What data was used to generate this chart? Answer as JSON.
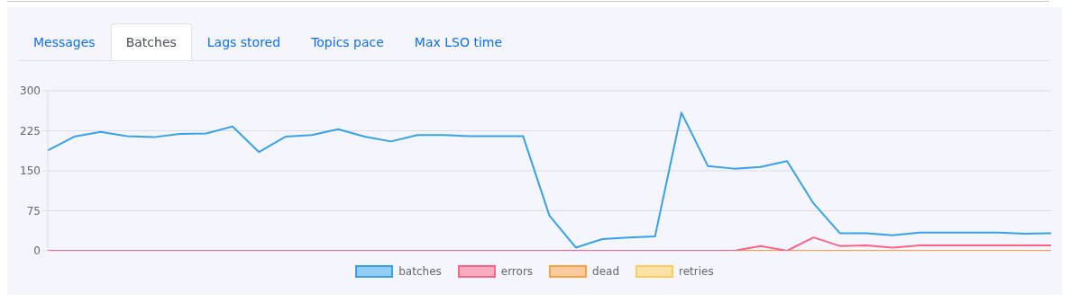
{
  "chart_data": {
    "type": "line",
    "annotations": [
      "Messages",
      "Batches",
      "Lags stored",
      "Topics pace",
      "Max LSO time"
    ],
    "categories": [
      null,
      null,
      null,
      null,
      null,
      null,
      null,
      null,
      null,
      null,
      null,
      null,
      null,
      null,
      null,
      null,
      null,
      null,
      null,
      null,
      null,
      null,
      null,
      null,
      null,
      null,
      null,
      null,
      null,
      null,
      null,
      null,
      null,
      null,
      null,
      null,
      null,
      null,
      null
    ],
    "series": [
      {
        "name": "batches",
        "color": "#36a2eb",
        "values": [
          188,
          214,
          223,
          215,
          213,
          219,
          220,
          233,
          185,
          214,
          217,
          228,
          214,
          205,
          217,
          217,
          215,
          215,
          215,
          66,
          6,
          22,
          25,
          27,
          259,
          159,
          154,
          157,
          168,
          89,
          33,
          33,
          29,
          34,
          34,
          34,
          34,
          32,
          33
        ]
      },
      {
        "name": "errors",
        "color": "#ff6384",
        "values": [
          0,
          0,
          0,
          0,
          0,
          0,
          0,
          0,
          0,
          0,
          0,
          0,
          0,
          0,
          0,
          0,
          0,
          0,
          0,
          0,
          0,
          0,
          0,
          0,
          0,
          0,
          0,
          9,
          0,
          25,
          9,
          10,
          6,
          10,
          10,
          10,
          10,
          10,
          10
        ]
      },
      {
        "name": "dead",
        "color": "#ff9f40",
        "values": [
          null,
          null,
          null,
          null,
          null,
          null,
          null,
          null,
          null,
          null,
          null,
          null,
          null,
          null,
          null,
          null,
          null,
          null,
          null,
          null,
          null,
          null,
          null,
          null,
          null,
          null,
          0,
          0,
          0,
          0,
          0,
          0,
          0,
          0,
          0,
          0,
          0,
          0,
          0
        ]
      },
      {
        "name": "retries",
        "color": "#ffcd56",
        "values": [
          null,
          null,
          null,
          null,
          null,
          null,
          null,
          null,
          null,
          null,
          null,
          null,
          null,
          null,
          null,
          null,
          null,
          null,
          null,
          null,
          null,
          null,
          null,
          null,
          null,
          null,
          null,
          null,
          null,
          null,
          null,
          null,
          null,
          null,
          null,
          null,
          null,
          null,
          null
        ]
      }
    ],
    "ylim": [
      0,
      300
    ],
    "yticks": [
      0,
      75,
      150,
      225,
      300
    ],
    "grid": "y",
    "legend": "bottom",
    "marker": "none",
    "line_style": "solid"
  }
}
